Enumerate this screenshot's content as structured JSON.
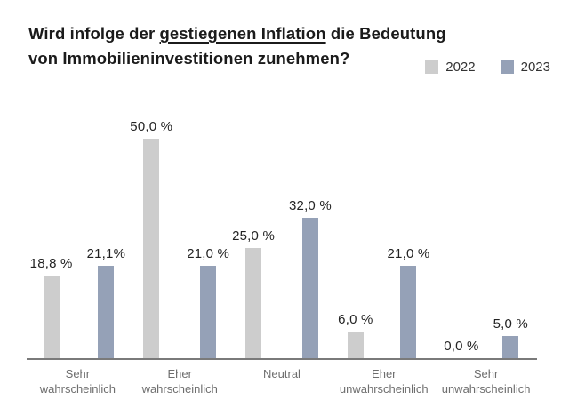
{
  "title": {
    "parts": [
      {
        "text": "Wird infolge der ",
        "underline": false
      },
      {
        "text": "gestiegenen Inflation",
        "underline": true
      },
      {
        "text": " die Bedeutung",
        "underline": false
      },
      {
        "text": "von Immobilieninvestitionen zunehmen?",
        "underline": false
      }
    ],
    "full_text": "Wird infolge der gestiegenen Inflation die Bedeutung von Immobilieninvestitionen zunehmen?"
  },
  "legend": {
    "position": "top-right",
    "items": [
      {
        "label": "2022",
        "color": "#cdcdcd"
      },
      {
        "label": "2023",
        "color": "#95a1b7"
      }
    ]
  },
  "colors": {
    "background": "#ffffff",
    "title_text": "#1b1b1b",
    "value_label_text": "#232323",
    "category_label_text": "#6e6e6e",
    "axis_line": "#7a7a7a",
    "bar_2022": "#cdcdcd",
    "bar_2023": "#95a1b7"
  },
  "chart_data": {
    "type": "bar",
    "title": "Wird infolge der gestiegenen Inflation die Bedeutung von Immobilieninvestitionen zunehmen?",
    "categories": [
      "Sehr wahrscheinlich",
      "Eher wahrscheinlich",
      "Neutral",
      "Eher unwahrscheinlich",
      "Sehr unwahrscheinlich"
    ],
    "series": [
      {
        "name": "2022",
        "color": "#cdcdcd",
        "values": [
          18.8,
          50.0,
          25.0,
          6.0,
          0.0
        ],
        "labels": [
          "18,8 %",
          "50,0 %",
          "25,0 %",
          "6,0 %",
          "0,0 %"
        ]
      },
      {
        "name": "2023",
        "color": "#95a1b7",
        "values": [
          21.1,
          21.0,
          32.0,
          21.0,
          5.0
        ],
        "labels": [
          "21,1%",
          "21,0 %",
          "32,0 %",
          "21,0 %",
          "5,0 %"
        ]
      }
    ],
    "value_suffix": "%",
    "decimal_separator": ",",
    "xlabel": "",
    "ylabel": "",
    "ylim": [
      0,
      50
    ],
    "grid": false,
    "y_axis_visible": false,
    "legend_position": "top-right",
    "bar_value_labels": true
  }
}
